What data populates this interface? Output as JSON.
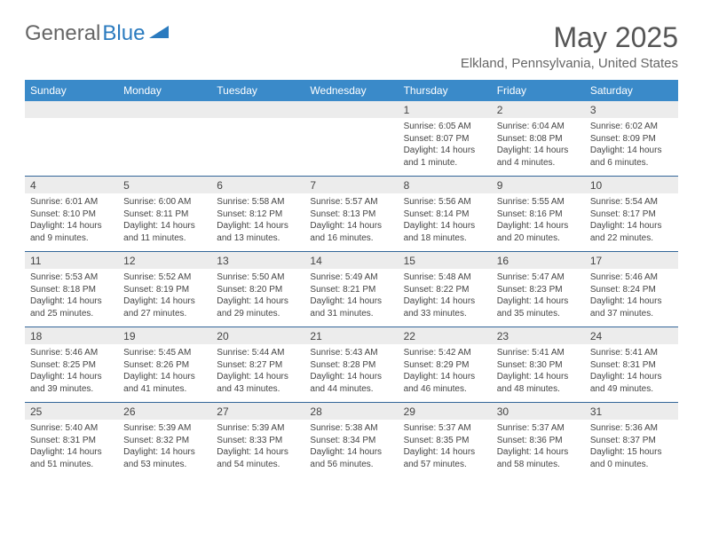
{
  "logo": {
    "left": "General",
    "right": "Blue"
  },
  "title": "May 2025",
  "location": "Elkland, Pennsylvania, United States",
  "colors": {
    "header_bg": "#3a8ac9",
    "header_text": "#ffffff",
    "daynum_bg": "#ececec",
    "text": "#444444",
    "rule": "#336699"
  },
  "dayHeaders": [
    "Sunday",
    "Monday",
    "Tuesday",
    "Wednesday",
    "Thursday",
    "Friday",
    "Saturday"
  ],
  "weeks": [
    [
      {
        "n": "",
        "sr": "",
        "ss": "",
        "dl": ""
      },
      {
        "n": "",
        "sr": "",
        "ss": "",
        "dl": ""
      },
      {
        "n": "",
        "sr": "",
        "ss": "",
        "dl": ""
      },
      {
        "n": "",
        "sr": "",
        "ss": "",
        "dl": ""
      },
      {
        "n": "1",
        "sr": "6:05 AM",
        "ss": "8:07 PM",
        "dl": "14 hours and 1 minute."
      },
      {
        "n": "2",
        "sr": "6:04 AM",
        "ss": "8:08 PM",
        "dl": "14 hours and 4 minutes."
      },
      {
        "n": "3",
        "sr": "6:02 AM",
        "ss": "8:09 PM",
        "dl": "14 hours and 6 minutes."
      }
    ],
    [
      {
        "n": "4",
        "sr": "6:01 AM",
        "ss": "8:10 PM",
        "dl": "14 hours and 9 minutes."
      },
      {
        "n": "5",
        "sr": "6:00 AM",
        "ss": "8:11 PM",
        "dl": "14 hours and 11 minutes."
      },
      {
        "n": "6",
        "sr": "5:58 AM",
        "ss": "8:12 PM",
        "dl": "14 hours and 13 minutes."
      },
      {
        "n": "7",
        "sr": "5:57 AM",
        "ss": "8:13 PM",
        "dl": "14 hours and 16 minutes."
      },
      {
        "n": "8",
        "sr": "5:56 AM",
        "ss": "8:14 PM",
        "dl": "14 hours and 18 minutes."
      },
      {
        "n": "9",
        "sr": "5:55 AM",
        "ss": "8:16 PM",
        "dl": "14 hours and 20 minutes."
      },
      {
        "n": "10",
        "sr": "5:54 AM",
        "ss": "8:17 PM",
        "dl": "14 hours and 22 minutes."
      }
    ],
    [
      {
        "n": "11",
        "sr": "5:53 AM",
        "ss": "8:18 PM",
        "dl": "14 hours and 25 minutes."
      },
      {
        "n": "12",
        "sr": "5:52 AM",
        "ss": "8:19 PM",
        "dl": "14 hours and 27 minutes."
      },
      {
        "n": "13",
        "sr": "5:50 AM",
        "ss": "8:20 PM",
        "dl": "14 hours and 29 minutes."
      },
      {
        "n": "14",
        "sr": "5:49 AM",
        "ss": "8:21 PM",
        "dl": "14 hours and 31 minutes."
      },
      {
        "n": "15",
        "sr": "5:48 AM",
        "ss": "8:22 PM",
        "dl": "14 hours and 33 minutes."
      },
      {
        "n": "16",
        "sr": "5:47 AM",
        "ss": "8:23 PM",
        "dl": "14 hours and 35 minutes."
      },
      {
        "n": "17",
        "sr": "5:46 AM",
        "ss": "8:24 PM",
        "dl": "14 hours and 37 minutes."
      }
    ],
    [
      {
        "n": "18",
        "sr": "5:46 AM",
        "ss": "8:25 PM",
        "dl": "14 hours and 39 minutes."
      },
      {
        "n": "19",
        "sr": "5:45 AM",
        "ss": "8:26 PM",
        "dl": "14 hours and 41 minutes."
      },
      {
        "n": "20",
        "sr": "5:44 AM",
        "ss": "8:27 PM",
        "dl": "14 hours and 43 minutes."
      },
      {
        "n": "21",
        "sr": "5:43 AM",
        "ss": "8:28 PM",
        "dl": "14 hours and 44 minutes."
      },
      {
        "n": "22",
        "sr": "5:42 AM",
        "ss": "8:29 PM",
        "dl": "14 hours and 46 minutes."
      },
      {
        "n": "23",
        "sr": "5:41 AM",
        "ss": "8:30 PM",
        "dl": "14 hours and 48 minutes."
      },
      {
        "n": "24",
        "sr": "5:41 AM",
        "ss": "8:31 PM",
        "dl": "14 hours and 49 minutes."
      }
    ],
    [
      {
        "n": "25",
        "sr": "5:40 AM",
        "ss": "8:31 PM",
        "dl": "14 hours and 51 minutes."
      },
      {
        "n": "26",
        "sr": "5:39 AM",
        "ss": "8:32 PM",
        "dl": "14 hours and 53 minutes."
      },
      {
        "n": "27",
        "sr": "5:39 AM",
        "ss": "8:33 PM",
        "dl": "14 hours and 54 minutes."
      },
      {
        "n": "28",
        "sr": "5:38 AM",
        "ss": "8:34 PM",
        "dl": "14 hours and 56 minutes."
      },
      {
        "n": "29",
        "sr": "5:37 AM",
        "ss": "8:35 PM",
        "dl": "14 hours and 57 minutes."
      },
      {
        "n": "30",
        "sr": "5:37 AM",
        "ss": "8:36 PM",
        "dl": "14 hours and 58 minutes."
      },
      {
        "n": "31",
        "sr": "5:36 AM",
        "ss": "8:37 PM",
        "dl": "15 hours and 0 minutes."
      }
    ]
  ]
}
